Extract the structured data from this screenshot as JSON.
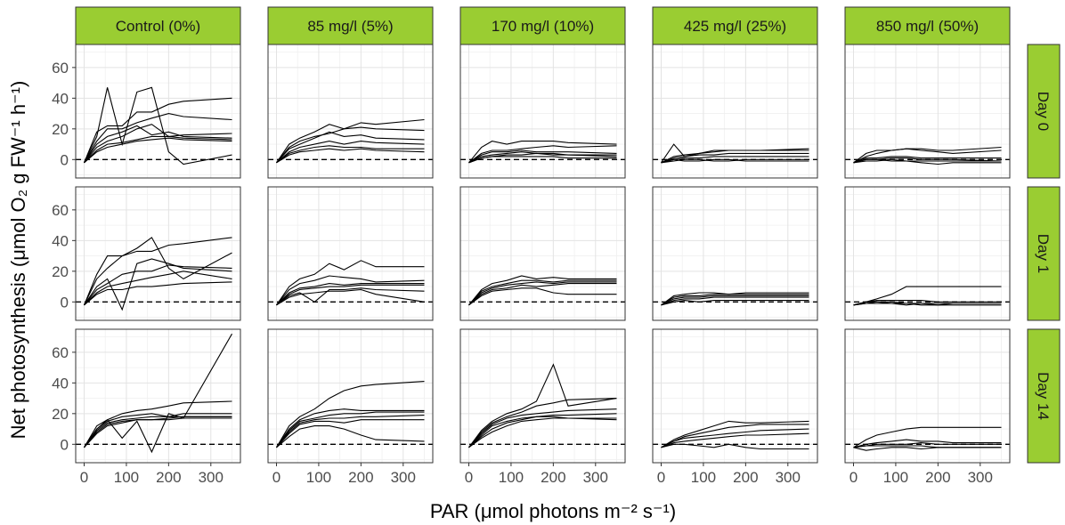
{
  "chart_data": {
    "type": "line",
    "xlabel": "PAR (μmol photons m⁻² s⁻¹)",
    "ylabel": "Net photosynthesis (μmol O₂ g FW⁻¹ h⁻¹)",
    "xlim": [
      -20,
      370
    ],
    "ylim": [
      -12,
      75
    ],
    "x_ticks": [
      0,
      100,
      200,
      300
    ],
    "y_ticks": [
      0,
      20,
      40,
      60
    ],
    "grid": true,
    "reference_line": {
      "y": 0,
      "style": "dashed"
    },
    "columns": [
      "Control (0%)",
      "85 mg/l (5%)",
      "170 mg/l (10%)",
      "425 mg/l (25%)",
      "850 mg/l (50%)"
    ],
    "rows": [
      "Day 0",
      "Day 1",
      "Day 14"
    ],
    "strip_color": "#9acd32",
    "x": [
      0,
      30,
      55,
      90,
      125,
      160,
      200,
      235,
      350
    ],
    "panels": [
      [
        [
          [
            -2,
            15,
            47,
            10,
            44,
            47,
            5,
            -3,
            3
          ],
          [
            -2,
            18,
            22,
            22,
            31,
            31,
            36,
            38,
            40
          ],
          [
            -2,
            12,
            20,
            20,
            24,
            27,
            30,
            28,
            26
          ],
          [
            -2,
            8,
            12,
            15,
            20,
            23,
            15,
            16,
            17
          ],
          [
            -2,
            10,
            15,
            18,
            22,
            16,
            18,
            15,
            14
          ],
          [
            -2,
            5,
            8,
            10,
            12,
            13,
            14,
            13,
            12
          ],
          [
            -2,
            6,
            10,
            11,
            13,
            15,
            15,
            14,
            13
          ]
        ],
        [
          [
            -2,
            10,
            14,
            18,
            23,
            20,
            24,
            23,
            26
          ],
          [
            -2,
            8,
            12,
            15,
            17,
            20,
            21,
            20,
            19
          ],
          [
            -2,
            7,
            10,
            14,
            18,
            15,
            16,
            14,
            13
          ],
          [
            -2,
            5,
            8,
            10,
            12,
            10,
            12,
            11,
            10
          ],
          [
            -2,
            4,
            6,
            8,
            9,
            8,
            8,
            7,
            7
          ],
          [
            -2,
            3,
            5,
            6,
            7,
            6,
            7,
            6,
            5
          ]
        ],
        [
          [
            -2,
            8,
            12,
            10,
            12,
            12,
            12,
            11,
            10
          ],
          [
            -2,
            4,
            6,
            6,
            7,
            8,
            9,
            8,
            9
          ],
          [
            -2,
            3,
            5,
            5,
            6,
            5,
            5,
            5,
            4
          ],
          [
            -2,
            2,
            3,
            4,
            5,
            4,
            4,
            3,
            3
          ],
          [
            -2,
            1,
            2,
            3,
            3,
            4,
            3,
            3,
            2
          ],
          [
            -2,
            1,
            2,
            2,
            2,
            2,
            2,
            1,
            1
          ]
        ],
        [
          [
            -2,
            10,
            2,
            4,
            6,
            6,
            6,
            6,
            6
          ],
          [
            -2,
            2,
            3,
            4,
            5,
            6,
            6,
            6,
            7
          ],
          [
            -2,
            1,
            2,
            3,
            3,
            4,
            4,
            4,
            4
          ],
          [
            -2,
            0,
            1,
            1,
            2,
            2,
            2,
            2,
            2
          ],
          [
            -2,
            -1,
            0,
            0,
            -1,
            -1,
            0,
            0,
            0
          ],
          [
            -2,
            0,
            -1,
            -1,
            0,
            0,
            -1,
            -1,
            -1
          ]
        ],
        [
          [
            -2,
            4,
            6,
            6,
            7,
            7,
            6,
            6,
            8
          ],
          [
            -2,
            2,
            4,
            6,
            7,
            6,
            5,
            4,
            6
          ],
          [
            -2,
            1,
            1,
            2,
            2,
            1,
            1,
            1,
            1
          ],
          [
            -2,
            0,
            0,
            1,
            1,
            0,
            0,
            0,
            -1
          ],
          [
            -2,
            -1,
            -1,
            0,
            -1,
            -2,
            -3,
            -2,
            -2
          ],
          [
            -2,
            0,
            0,
            -1,
            -1,
            -1,
            -1,
            -1,
            -1
          ]
        ]
      ],
      [
        [
          [
            -2,
            18,
            30,
            30,
            35,
            42,
            22,
            15,
            32
          ],
          [
            -2,
            15,
            22,
            30,
            33,
            33,
            37,
            38,
            42
          ],
          [
            -2,
            10,
            15,
            -5,
            25,
            28,
            25,
            22,
            20
          ],
          [
            -2,
            8,
            12,
            18,
            20,
            20,
            24,
            23,
            22
          ],
          [
            -2,
            6,
            10,
            12,
            14,
            16,
            18,
            20,
            15
          ],
          [
            -2,
            5,
            8,
            8,
            10,
            10,
            11,
            12,
            13
          ]
        ],
        [
          [
            -2,
            10,
            15,
            18,
            25,
            21,
            27,
            23,
            23
          ],
          [
            -2,
            8,
            12,
            14,
            17,
            16,
            15,
            13,
            14
          ],
          [
            -2,
            6,
            9,
            10,
            12,
            11,
            12,
            12,
            12
          ],
          [
            -2,
            5,
            8,
            9,
            10,
            10,
            11,
            11,
            11
          ],
          [
            -2,
            4,
            6,
            0,
            8,
            8,
            9,
            8,
            7
          ],
          [
            -2,
            3,
            5,
            6,
            7,
            7,
            8,
            5,
            0
          ]
        ],
        [
          [
            -2,
            8,
            12,
            14,
            17,
            15,
            16,
            15,
            15
          ],
          [
            -2,
            7,
            10,
            12,
            14,
            14,
            13,
            14,
            14
          ],
          [
            -2,
            6,
            9,
            11,
            12,
            13,
            12,
            13,
            13
          ],
          [
            -2,
            5,
            8,
            9,
            11,
            10,
            11,
            12,
            12
          ],
          [
            -2,
            4,
            7,
            8,
            9,
            9,
            6,
            5,
            5
          ]
        ],
        [
          [
            -2,
            4,
            5,
            6,
            6,
            5,
            6,
            6,
            6
          ],
          [
            -2,
            3,
            4,
            4,
            5,
            5,
            5,
            5,
            5
          ],
          [
            -2,
            2,
            3,
            3,
            4,
            4,
            4,
            4,
            4
          ],
          [
            -2,
            1,
            2,
            2,
            3,
            3,
            3,
            3,
            3
          ],
          [
            -2,
            0,
            1,
            0,
            1,
            1,
            1,
            1,
            1
          ]
        ],
        [
          [
            -2,
            0,
            2,
            5,
            10,
            10,
            10,
            10,
            10
          ],
          [
            -2,
            0,
            1,
            1,
            1,
            1,
            0,
            0,
            0
          ],
          [
            -2,
            -1,
            0,
            -1,
            -1,
            -1,
            -1,
            -1,
            -1
          ],
          [
            -2,
            0,
            0,
            0,
            -1,
            -2,
            -2,
            -1,
            -1
          ],
          [
            -2,
            -1,
            -1,
            -1,
            -2,
            -1,
            -2,
            -2,
            -2
          ]
        ]
      ],
      [
        [
          [
            -2,
            12,
            16,
            4,
            15,
            -5,
            20,
            17,
            72
          ],
          [
            -2,
            10,
            16,
            20,
            22,
            23,
            25,
            27,
            28
          ],
          [
            -2,
            10,
            15,
            18,
            19,
            20,
            18,
            20,
            20
          ],
          [
            -2,
            9,
            14,
            16,
            17,
            18,
            18,
            18,
            18
          ],
          [
            -2,
            8,
            13,
            15,
            16,
            16,
            16,
            17,
            17
          ],
          [
            -2,
            7,
            12,
            14,
            16,
            16,
            17,
            18,
            18
          ]
        ],
        [
          [
            -2,
            12,
            18,
            23,
            30,
            35,
            38,
            39,
            41
          ],
          [
            -2,
            10,
            16,
            20,
            22,
            23,
            22,
            22,
            22
          ],
          [
            -2,
            9,
            15,
            17,
            19,
            20,
            20,
            21,
            21
          ],
          [
            -2,
            8,
            14,
            16,
            17,
            17,
            18,
            18,
            19
          ],
          [
            -2,
            7,
            13,
            15,
            15,
            14,
            16,
            16,
            16
          ],
          [
            -2,
            5,
            10,
            12,
            12,
            10,
            6,
            3,
            2
          ]
        ],
        [
          [
            -2,
            9,
            15,
            20,
            23,
            28,
            52,
            25,
            30
          ],
          [
            -2,
            8,
            14,
            18,
            21,
            25,
            27,
            29,
            30
          ],
          [
            -2,
            7,
            13,
            17,
            19,
            20,
            21,
            22,
            23
          ],
          [
            -2,
            6,
            12,
            15,
            17,
            18,
            19,
            19,
            20
          ],
          [
            -2,
            5,
            10,
            14,
            16,
            18,
            18,
            17,
            17
          ],
          [
            -2,
            4,
            8,
            12,
            15,
            16,
            17,
            17,
            16
          ]
        ],
        [
          [
            -2,
            3,
            6,
            9,
            12,
            15,
            14,
            14,
            15
          ],
          [
            -2,
            2,
            5,
            7,
            9,
            11,
            12,
            13,
            13
          ],
          [
            -2,
            2,
            4,
            5,
            6,
            7,
            8,
            9,
            10
          ],
          [
            -2,
            1,
            2,
            3,
            4,
            5,
            6,
            6,
            7
          ],
          [
            -2,
            0,
            0,
            -1,
            -2,
            0,
            -2,
            -3,
            -3
          ]
        ],
        [
          [
            -2,
            3,
            6,
            8,
            10,
            11,
            11,
            11,
            11
          ],
          [
            -2,
            0,
            1,
            2,
            3,
            2,
            2,
            1,
            1
          ],
          [
            -2,
            -1,
            0,
            0,
            0,
            1,
            0,
            0,
            0
          ],
          [
            -2,
            -1,
            -1,
            -1,
            -1,
            -1,
            -2,
            -2,
            -2
          ],
          [
            -2,
            -4,
            -3,
            -2,
            -2,
            -3,
            -2,
            -2,
            -2
          ]
        ]
      ]
    ]
  }
}
